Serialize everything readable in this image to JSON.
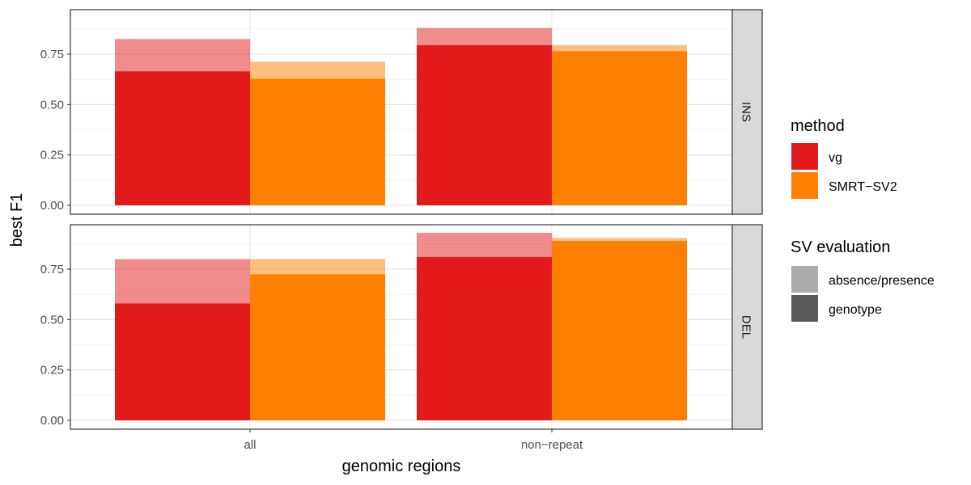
{
  "chart_data": {
    "type": "bar",
    "xlabel": "genomic regions",
    "ylabel": "best F1",
    "categories": [
      "all",
      "non−repeat"
    ],
    "ylim": [
      0,
      0.95
    ],
    "yticks": [
      "0.00",
      "0.25",
      "0.50",
      "0.75"
    ],
    "ytick_values": [
      0,
      0.25,
      0.5,
      0.75
    ],
    "grid": true,
    "legend_position": "right",
    "facets": [
      {
        "label": "INS",
        "series": [
          {
            "method": "vg",
            "absence_presence": [
              0.825,
              0.88
            ],
            "genotype": [
              0.665,
              0.795
            ]
          },
          {
            "method": "SMRT−SV2",
            "absence_presence": [
              0.712,
              0.795
            ],
            "genotype": [
              0.628,
              0.765
            ]
          }
        ]
      },
      {
        "label": "DEL",
        "series": [
          {
            "method": "vg",
            "absence_presence": [
              0.8,
              0.93
            ],
            "genotype": [
              0.58,
              0.81
            ]
          },
          {
            "method": "SMRT−SV2",
            "absence_presence": [
              0.8,
              0.905
            ],
            "genotype": [
              0.725,
              0.89
            ]
          }
        ]
      }
    ],
    "legend": {
      "method": {
        "title": "method",
        "items": [
          {
            "label": "vg",
            "color": "#e31a1c"
          },
          {
            "label": "SMRT−SV2",
            "color": "#ff7f00"
          }
        ]
      },
      "evaluation": {
        "title": "SV evaluation",
        "items": [
          {
            "label": "absence/presence",
            "color": "#ababab"
          },
          {
            "label": "genotype",
            "color": "#595959"
          }
        ]
      }
    },
    "colors": {
      "vg": "#e31a1c",
      "smrt": "#ff7f00",
      "absence_presence_alpha": 0.5
    }
  }
}
